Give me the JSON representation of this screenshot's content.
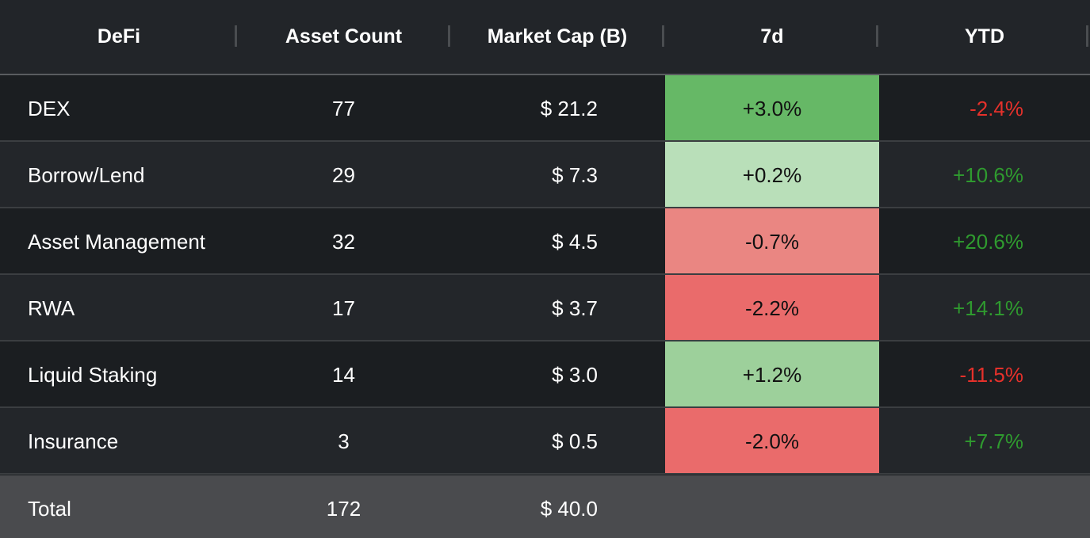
{
  "chart_data": {
    "type": "table",
    "columns": [
      "DeFi",
      "Asset Count",
      "Market Cap (B)",
      "7d",
      "YTD"
    ],
    "rows": [
      {
        "name": "DEX",
        "count": "77",
        "cap": "$ 21.2",
        "d7": "+3.0%",
        "ytd": "-2.4%",
        "d7_color": "#66b866",
        "ytd_color": "#e5312b"
      },
      {
        "name": "Borrow/Lend",
        "count": "29",
        "cap": "$ 7.3",
        "d7": "+0.2%",
        "ytd": "+10.6%",
        "d7_color": "#b9dfb9",
        "ytd_color": "#2f9a2f"
      },
      {
        "name": "Asset Management",
        "count": "32",
        "cap": "$ 4.5",
        "d7": "-0.7%",
        "ytd": "+20.6%",
        "d7_color": "#ea8682",
        "ytd_color": "#2f9a2f"
      },
      {
        "name": "RWA",
        "count": "17",
        "cap": "$ 3.7",
        "d7": "-2.2%",
        "ytd": "+14.1%",
        "d7_color": "#ea6b6b",
        "ytd_color": "#2f9a2f"
      },
      {
        "name": "Liquid Staking",
        "count": "14",
        "cap": "$ 3.0",
        "d7": "+1.2%",
        "ytd": "-11.5%",
        "d7_color": "#9dd09b",
        "ytd_color": "#e5312b"
      },
      {
        "name": "Insurance",
        "count": "3",
        "cap": "$ 0.5",
        "d7": "-2.0%",
        "ytd": "+7.7%",
        "d7_color": "#ea6b6b",
        "ytd_color": "#2f9a2f"
      }
    ],
    "total": {
      "label": "Total",
      "count": "172",
      "cap": "$ 40.0"
    }
  },
  "colors": {
    "positive_text": "#2f9a2f",
    "negative_text": "#e5312b"
  }
}
